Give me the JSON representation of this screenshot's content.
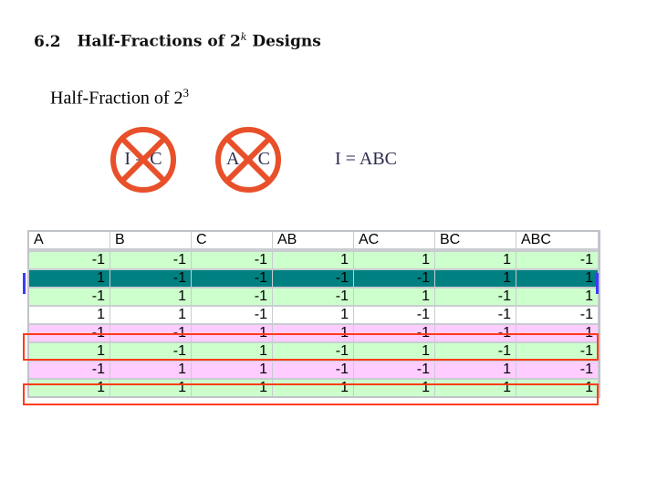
{
  "header": {
    "section_number": "6.2",
    "section_title": "Half-Fractions of 2",
    "section_title_exp": "k",
    "section_title_tail": "Designs"
  },
  "subtitle": {
    "text": "Half-Fraction of 2",
    "exp": "3"
  },
  "generators": [
    {
      "text": "I = C",
      "crossed": true
    },
    {
      "text": "A = C",
      "crossed": true
    },
    {
      "text": "I = ABC",
      "crossed": false
    }
  ],
  "colors": {
    "cross": "#e8502a",
    "green_row": "#ccffcc",
    "pink_row": "#ffccff",
    "teal_row": "#008080",
    "highlight_red": "#ff3b1a"
  },
  "table": {
    "headers": [
      "A",
      "B",
      "C",
      "AB",
      "AC",
      "BC",
      "ABC"
    ],
    "rows": [
      {
        "cells": [
          "-1",
          "-1",
          "-1",
          "1",
          "1",
          "1",
          "-1"
        ],
        "style": "green"
      },
      {
        "cells": [
          "1",
          "-1",
          "-1",
          "-1",
          "-1",
          "1",
          "1"
        ],
        "style": "teal"
      },
      {
        "cells": [
          "-1",
          "1",
          "-1",
          "-1",
          "1",
          "-1",
          "1"
        ],
        "style": "green"
      },
      {
        "cells": [
          "1",
          "1",
          "-1",
          "1",
          "-1",
          "-1",
          "-1"
        ],
        "style": "white"
      },
      {
        "cells": [
          "-1",
          "-1",
          "1",
          "1",
          "-1",
          "-1",
          "1"
        ],
        "style": "pink"
      },
      {
        "cells": [
          "1",
          "-1",
          "1",
          "-1",
          "1",
          "-1",
          "-1"
        ],
        "style": "green"
      },
      {
        "cells": [
          "-1",
          "1",
          "1",
          "-1",
          "-1",
          "1",
          "-1"
        ],
        "style": "pink"
      },
      {
        "cells": [
          "1",
          "1",
          "1",
          "1",
          "1",
          "1",
          "1"
        ],
        "style": "green"
      }
    ]
  }
}
